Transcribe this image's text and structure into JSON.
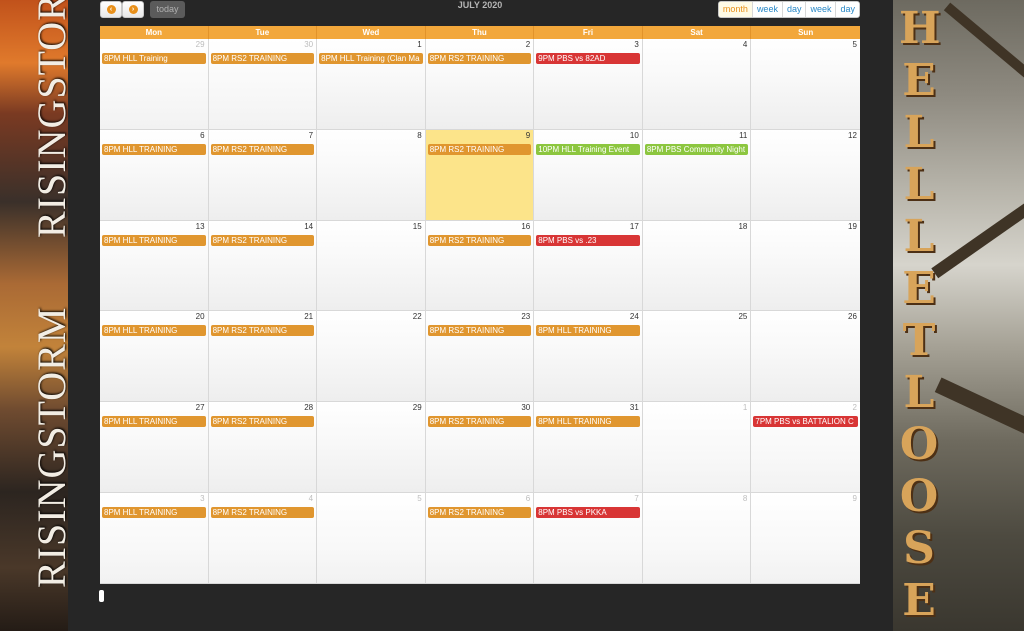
{
  "left_panel": {
    "brand_top": "RISINGSTORM",
    "brand_bottom": "RISINGSTORM"
  },
  "right_panel": {
    "letters": [
      "H",
      "E",
      "L",
      "L",
      "L",
      "E",
      "T",
      "L",
      "O",
      "O",
      "S",
      "E"
    ]
  },
  "toolbar": {
    "prev_icon": "chevron-left-icon",
    "next_icon": "chevron-right-icon",
    "prev_glyph": "‹",
    "next_glyph": "›",
    "today_label": "today",
    "title": "JULY 2020",
    "views": [
      "month",
      "week",
      "day",
      "week",
      "day"
    ],
    "active_view": "month"
  },
  "weekdays": [
    "Mon",
    "Tue",
    "Wed",
    "Thu",
    "Fri",
    "Sat",
    "Sun"
  ],
  "weeks": [
    [
      {
        "day": "29",
        "other": true,
        "event": {
          "label": "8PM HLL Training",
          "color": "orange"
        }
      },
      {
        "day": "30",
        "other": true,
        "event": {
          "label": "8PM RS2 TRAINING",
          "color": "orange"
        }
      },
      {
        "day": "1",
        "event": {
          "label": "8PM HLL Training (Clan Ma",
          "color": "orange"
        }
      },
      {
        "day": "2",
        "event": {
          "label": "8PM RS2 TRAINING",
          "color": "orange"
        }
      },
      {
        "day": "3",
        "event": {
          "label": "9PM PBS vs 82AD",
          "color": "red"
        }
      },
      {
        "day": "4"
      },
      {
        "day": "5"
      }
    ],
    [
      {
        "day": "6",
        "event": {
          "label": "8PM HLL TRAINING",
          "color": "orange"
        }
      },
      {
        "day": "7",
        "event": {
          "label": "8PM RS2 TRAINING",
          "color": "orange"
        }
      },
      {
        "day": "8"
      },
      {
        "day": "9",
        "today": true,
        "event": {
          "label": "8PM RS2 TRAINING",
          "color": "orange"
        }
      },
      {
        "day": "10",
        "event": {
          "label": "10PM HLL Training Event",
          "color": "green"
        }
      },
      {
        "day": "11",
        "event": {
          "label": "8PM PBS Community Night",
          "color": "green"
        }
      },
      {
        "day": "12"
      }
    ],
    [
      {
        "day": "13",
        "event": {
          "label": "8PM HLL TRAINING",
          "color": "orange"
        }
      },
      {
        "day": "14",
        "event": {
          "label": "8PM RS2 TRAINING",
          "color": "orange"
        }
      },
      {
        "day": "15"
      },
      {
        "day": "16",
        "event": {
          "label": "8PM RS2 TRAINING",
          "color": "orange"
        }
      },
      {
        "day": "17",
        "event": {
          "label": "8PM PBS vs .23",
          "color": "red"
        }
      },
      {
        "day": "18"
      },
      {
        "day": "19"
      }
    ],
    [
      {
        "day": "20",
        "event": {
          "label": "8PM HLL TRAINING",
          "color": "orange"
        }
      },
      {
        "day": "21",
        "event": {
          "label": "8PM RS2 TRAINING",
          "color": "orange"
        }
      },
      {
        "day": "22"
      },
      {
        "day": "23",
        "event": {
          "label": "8PM RS2 TRAINING",
          "color": "orange"
        }
      },
      {
        "day": "24",
        "event": {
          "label": "8PM HLL TRAINING",
          "color": "orange"
        }
      },
      {
        "day": "25"
      },
      {
        "day": "26"
      }
    ],
    [
      {
        "day": "27",
        "event": {
          "label": "8PM HLL TRAINING",
          "color": "orange"
        }
      },
      {
        "day": "28",
        "event": {
          "label": "8PM RS2 TRAINING",
          "color": "orange"
        }
      },
      {
        "day": "29"
      },
      {
        "day": "30",
        "event": {
          "label": "8PM RS2 TRAINING",
          "color": "orange"
        }
      },
      {
        "day": "31",
        "event": {
          "label": "8PM HLL TRAINING",
          "color": "orange"
        }
      },
      {
        "day": "1",
        "other": true
      },
      {
        "day": "2",
        "other": true,
        "event": {
          "label": "7PM PBS vs BATTALION C",
          "color": "red"
        }
      }
    ],
    [
      {
        "day": "3",
        "other": true,
        "event": {
          "label": "8PM HLL TRAINING",
          "color": "orange"
        }
      },
      {
        "day": "4",
        "other": true,
        "event": {
          "label": "8PM RS2 TRAINING",
          "color": "orange"
        }
      },
      {
        "day": "5",
        "other": true
      },
      {
        "day": "6",
        "other": true,
        "event": {
          "label": "8PM RS2 TRAINING",
          "color": "orange"
        }
      },
      {
        "day": "7",
        "other": true,
        "event": {
          "label": "8PM PBS vs PKKA",
          "color": "red"
        }
      },
      {
        "day": "8",
        "other": true
      },
      {
        "day": "9",
        "other": true
      }
    ]
  ],
  "colors": {
    "orange": "#e0962f",
    "red": "#d83535",
    "green": "#8cc63f",
    "header": "#f2a73b",
    "today": "#fce48a"
  }
}
